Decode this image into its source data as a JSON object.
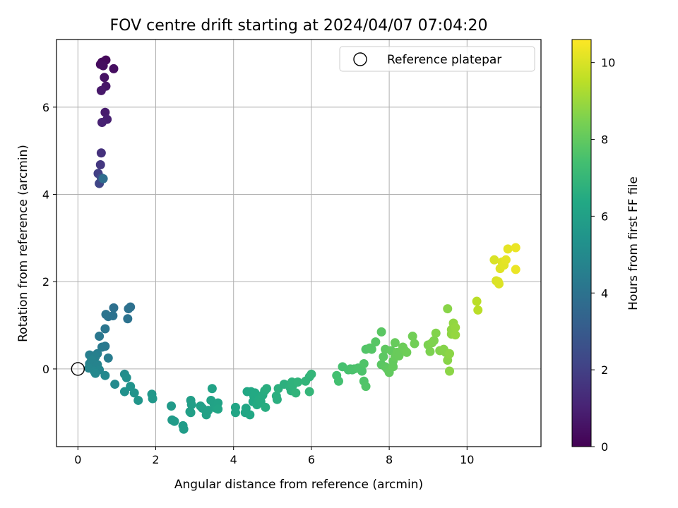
{
  "chart_data": {
    "type": "scatter",
    "title": "FOV centre drift starting at 2024/04/07 07:04:20",
    "xlabel": "Angular distance from reference (arcmin)",
    "ylabel": "Rotation from reference (arcmin)",
    "xlim": [
      -0.55,
      11.9
    ],
    "ylim": [
      -1.78,
      7.55
    ],
    "xticks": [
      0,
      2,
      4,
      6,
      8,
      10
    ],
    "yticks": [
      0,
      2,
      4,
      6
    ],
    "grid": true,
    "legend_position": "top-right",
    "reference": {
      "label": "Reference platepar",
      "x": 0,
      "y": 0
    },
    "colorbar": {
      "label": "Hours from first FF file",
      "range": [
        0,
        10.6
      ],
      "ticks": [
        0,
        2,
        4,
        6,
        8,
        10
      ],
      "colormap": "viridis"
    },
    "points": [
      [
        0.72,
        7.08,
        0.2
      ],
      [
        0.62,
        7.03,
        0.25
      ],
      [
        0.58,
        6.98,
        0.3
      ],
      [
        0.65,
        6.95,
        0.35
      ],
      [
        0.92,
        6.88,
        0.4
      ],
      [
        0.68,
        6.68,
        0.5
      ],
      [
        0.72,
        6.48,
        0.6
      ],
      [
        0.6,
        6.38,
        0.7
      ],
      [
        0.7,
        5.88,
        0.8
      ],
      [
        0.75,
        5.72,
        0.9
      ],
      [
        0.62,
        5.65,
        1.0
      ],
      [
        0.6,
        4.95,
        1.5
      ],
      [
        0.58,
        4.68,
        1.7
      ],
      [
        0.52,
        4.48,
        2.0
      ],
      [
        0.55,
        4.25,
        2.2
      ],
      [
        0.6,
        4.38,
        2.5
      ],
      [
        0.65,
        4.36,
        3.8
      ],
      [
        1.35,
        1.42,
        3.9
      ],
      [
        1.3,
        1.38,
        3.95
      ],
      [
        1.28,
        1.15,
        4.0
      ],
      [
        0.92,
        1.4,
        3.9
      ],
      [
        0.9,
        1.22,
        4.0
      ],
      [
        0.78,
        1.2,
        4.0
      ],
      [
        0.72,
        1.25,
        4.05
      ],
      [
        0.7,
        0.92,
        4.1
      ],
      [
        0.55,
        0.75,
        4.2
      ],
      [
        0.7,
        0.52,
        4.25
      ],
      [
        0.62,
        0.5,
        4.3
      ],
      [
        0.78,
        0.25,
        4.4
      ],
      [
        0.42,
        0.3,
        4.4
      ],
      [
        0.3,
        0.32,
        4.5
      ],
      [
        0.5,
        0.35,
        4.5
      ],
      [
        0.45,
        0.28,
        4.6
      ],
      [
        0.3,
        0.12,
        4.6
      ],
      [
        0.4,
        0.08,
        4.7
      ],
      [
        0.35,
        0.2,
        4.7
      ],
      [
        0.5,
        0.1,
        4.7
      ],
      [
        0.55,
        -0.02,
        4.8
      ],
      [
        0.28,
        0.02,
        4.8
      ],
      [
        0.42,
        -0.05,
        4.85
      ],
      [
        0.45,
        -0.1,
        4.9
      ],
      [
        0.7,
        -0.15,
        4.9
      ],
      [
        0.95,
        -0.35,
        5.0
      ],
      [
        1.2,
        -0.12,
        5.1
      ],
      [
        1.25,
        -0.2,
        5.2
      ],
      [
        1.2,
        -0.52,
        5.3
      ],
      [
        1.35,
        -0.4,
        5.4
      ],
      [
        1.45,
        -0.55,
        5.4
      ],
      [
        1.55,
        -0.72,
        5.5
      ],
      [
        1.9,
        -0.58,
        5.6
      ],
      [
        1.92,
        -0.68,
        5.6
      ],
      [
        2.4,
        -0.85,
        5.7
      ],
      [
        2.42,
        -1.17,
        5.7
      ],
      [
        2.48,
        -1.2,
        5.75
      ],
      [
        2.7,
        -1.3,
        5.8
      ],
      [
        2.72,
        -1.38,
        5.8
      ],
      [
        2.9,
        -0.72,
        5.9
      ],
      [
        2.92,
        -0.82,
        5.9
      ],
      [
        2.88,
        -0.98,
        5.9
      ],
      [
        2.9,
        -1.0,
        5.95
      ],
      [
        3.15,
        -0.85,
        6.0
      ],
      [
        3.2,
        -0.9,
        6.0
      ],
      [
        3.3,
        -1.05,
        6.05
      ],
      [
        3.35,
        -0.95,
        6.05
      ],
      [
        3.42,
        -0.72,
        6.1
      ],
      [
        3.45,
        -0.45,
        6.1
      ],
      [
        3.5,
        -0.8,
        6.1
      ],
      [
        3.55,
        -0.9,
        6.15
      ],
      [
        3.6,
        -0.78,
        6.15
      ],
      [
        3.6,
        -0.92,
        6.2
      ],
      [
        4.05,
        -0.88,
        6.2
      ],
      [
        4.05,
        -1.0,
        6.2
      ],
      [
        4.3,
        -1.0,
        6.25
      ],
      [
        4.32,
        -0.9,
        6.25
      ],
      [
        4.35,
        -0.52,
        6.3
      ],
      [
        4.42,
        -1.05,
        6.3
      ],
      [
        4.45,
        -0.52,
        6.35
      ],
      [
        4.5,
        -0.75,
        6.35
      ],
      [
        4.52,
        -0.62,
        6.4
      ],
      [
        4.55,
        -0.55,
        6.4
      ],
      [
        4.6,
        -0.82,
        6.45
      ],
      [
        4.65,
        -0.7,
        6.45
      ],
      [
        4.7,
        -0.75,
        6.5
      ],
      [
        4.75,
        -0.6,
        6.5
      ],
      [
        4.8,
        -0.5,
        6.55
      ],
      [
        4.82,
        -0.88,
        6.55
      ],
      [
        4.85,
        -0.45,
        6.6
      ],
      [
        5.1,
        -0.62,
        6.65
      ],
      [
        5.12,
        -0.7,
        6.65
      ],
      [
        5.15,
        -0.45,
        6.7
      ],
      [
        5.3,
        -0.35,
        6.7
      ],
      [
        5.45,
        -0.42,
        6.75
      ],
      [
        5.48,
        -0.5,
        6.75
      ],
      [
        5.5,
        -0.3,
        6.8
      ],
      [
        5.52,
        -0.38,
        6.8
      ],
      [
        5.6,
        -0.55,
        6.85
      ],
      [
        5.65,
        -0.3,
        6.85
      ],
      [
        5.85,
        -0.28,
        6.9
      ],
      [
        5.95,
        -0.18,
        6.9
      ],
      [
        5.95,
        -0.52,
        6.95
      ],
      [
        6.0,
        -0.12,
        6.95
      ],
      [
        6.65,
        -0.15,
        7.4
      ],
      [
        6.7,
        -0.28,
        7.4
      ],
      [
        6.8,
        0.05,
        7.45
      ],
      [
        6.95,
        -0.02,
        7.5
      ],
      [
        7.0,
        0.0,
        7.5
      ],
      [
        7.05,
        -0.02,
        7.55
      ],
      [
        7.1,
        0.0,
        7.55
      ],
      [
        7.2,
        0.02,
        7.6
      ],
      [
        7.3,
        -0.05,
        7.6
      ],
      [
        7.35,
        0.12,
        7.65
      ],
      [
        7.35,
        -0.28,
        7.65
      ],
      [
        7.4,
        -0.4,
        7.7
      ],
      [
        7.4,
        0.45,
        7.7
      ],
      [
        7.5,
        0.48,
        7.75
      ],
      [
        7.55,
        0.45,
        7.75
      ],
      [
        7.65,
        0.62,
        7.8
      ],
      [
        7.8,
        0.85,
        7.85
      ],
      [
        7.8,
        0.1,
        7.85
      ],
      [
        7.85,
        0.28,
        7.9
      ],
      [
        7.9,
        0.05,
        7.9
      ],
      [
        7.9,
        0.45,
        7.95
      ],
      [
        7.95,
        0.0,
        7.95
      ],
      [
        8.0,
        -0.08,
        8.0
      ],
      [
        8.05,
        0.42,
        8.0
      ],
      [
        8.1,
        0.18,
        8.05
      ],
      [
        8.1,
        0.05,
        8.05
      ],
      [
        8.15,
        0.28,
        8.1
      ],
      [
        8.15,
        0.6,
        8.1
      ],
      [
        8.2,
        0.38,
        8.15
      ],
      [
        8.25,
        0.3,
        8.15
      ],
      [
        8.35,
        0.5,
        8.2
      ],
      [
        8.4,
        0.42,
        8.2
      ],
      [
        8.45,
        0.38,
        8.25
      ],
      [
        8.6,
        0.75,
        8.3
      ],
      [
        8.65,
        0.58,
        8.3
      ],
      [
        9.0,
        0.55,
        8.5
      ],
      [
        9.05,
        0.4,
        8.5
      ],
      [
        9.1,
        0.6,
        8.55
      ],
      [
        9.15,
        0.65,
        8.55
      ],
      [
        9.2,
        0.82,
        8.6
      ],
      [
        9.3,
        0.42,
        8.6
      ],
      [
        9.4,
        0.45,
        8.65
      ],
      [
        9.45,
        0.38,
        8.65
      ],
      [
        9.5,
        1.38,
        8.7
      ],
      [
        9.5,
        0.2,
        8.7
      ],
      [
        9.55,
        0.35,
        8.75
      ],
      [
        9.55,
        -0.05,
        8.75
      ],
      [
        9.6,
        0.8,
        8.8
      ],
      [
        9.6,
        0.9,
        8.8
      ],
      [
        9.65,
        0.85,
        8.85
      ],
      [
        9.65,
        1.05,
        8.85
      ],
      [
        9.7,
        0.95,
        8.9
      ],
      [
        9.7,
        0.78,
        8.9
      ],
      [
        10.25,
        1.55,
        9.5
      ],
      [
        10.28,
        1.35,
        9.5
      ],
      [
        10.7,
        2.5,
        10.0
      ],
      [
        10.75,
        2.02,
        10.0
      ],
      [
        10.8,
        2.0,
        10.05
      ],
      [
        10.82,
        1.95,
        10.05
      ],
      [
        10.85,
        2.3,
        10.1
      ],
      [
        10.9,
        2.45,
        10.1
      ],
      [
        10.95,
        2.38,
        10.15
      ],
      [
        11.0,
        2.5,
        10.2
      ],
      [
        11.05,
        2.75,
        10.2
      ],
      [
        11.25,
        2.78,
        10.3
      ],
      [
        11.25,
        2.28,
        10.3
      ]
    ]
  }
}
